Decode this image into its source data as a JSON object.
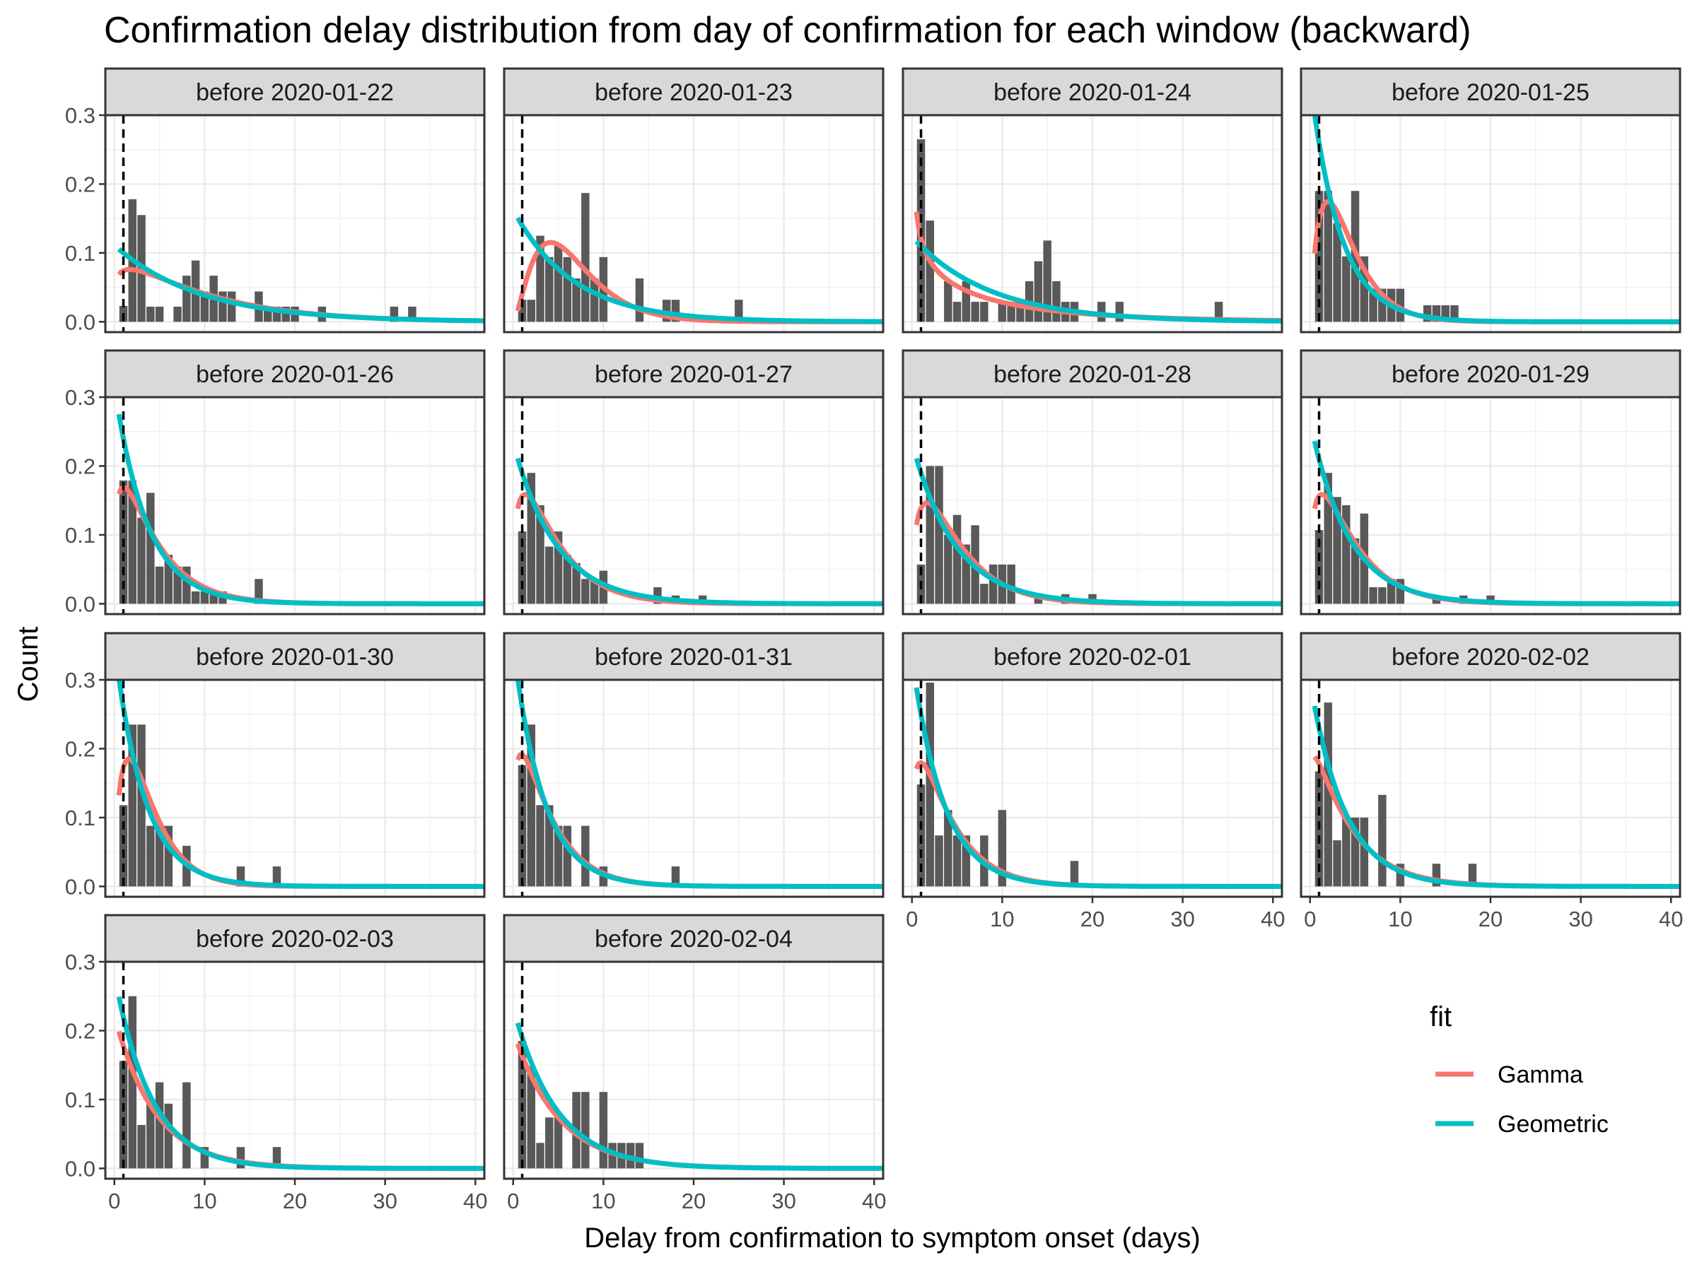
{
  "chart_data": {
    "type": "bar",
    "title": "Confirmation delay distribution from day of confirmation for each window (backward)",
    "xlabel": "Delay from confirmation to symptom onset (days)",
    "ylabel": "Count",
    "xlim": [
      -1,
      41
    ],
    "ylim": [
      -0.015,
      0.3
    ],
    "x_ticks": [
      0,
      10,
      20,
      30,
      40
    ],
    "y_ticks": [
      0.0,
      0.1,
      0.2,
      0.3
    ],
    "y_tick_labels": [
      "0.0",
      "0.1",
      "0.2",
      "0.3"
    ],
    "vline_x": 1,
    "grid": true,
    "legend": {
      "title": "fit",
      "position": "right",
      "entries": [
        {
          "name": "Gamma",
          "color": "#F8766D"
        },
        {
          "name": "Geometric",
          "color": "#00BFC4"
        }
      ]
    },
    "bar_color": "#595959",
    "panels": [
      {
        "label": "before 2020-01-22",
        "bars": [
          [
            1,
            0.023
          ],
          [
            2,
            0.178
          ],
          [
            3,
            0.155
          ],
          [
            4,
            0.022
          ],
          [
            5,
            0.022
          ],
          [
            7,
            0.022
          ],
          [
            8,
            0.067
          ],
          [
            9,
            0.089
          ],
          [
            10,
            0.044
          ],
          [
            11,
            0.067
          ],
          [
            12,
            0.044
          ],
          [
            13,
            0.044
          ],
          [
            16,
            0.044
          ],
          [
            17,
            0.022
          ],
          [
            18,
            0.022
          ],
          [
            19,
            0.022
          ],
          [
            20,
            0.022
          ],
          [
            23,
            0.022
          ],
          [
            31,
            0.022
          ],
          [
            33,
            0.022
          ]
        ],
        "gamma": {
          "shape": 1.2,
          "scale": 8.5
        },
        "geometric_p": 0.1
      },
      {
        "label": "before 2020-01-23",
        "bars": [
          [
            1,
            0.032
          ],
          [
            2,
            0.032
          ],
          [
            3,
            0.125
          ],
          [
            4,
            0.094
          ],
          [
            5,
            0.11
          ],
          [
            6,
            0.094
          ],
          [
            7,
            0.063
          ],
          [
            8,
            0.187
          ],
          [
            9,
            0.063
          ],
          [
            10,
            0.094
          ],
          [
            14,
            0.063
          ],
          [
            17,
            0.032
          ],
          [
            18,
            0.032
          ],
          [
            25,
            0.032
          ]
        ],
        "gamma": {
          "shape": 2.6,
          "scale": 2.6
        },
        "geometric_p": 0.14
      },
      {
        "label": "before 2020-01-24",
        "bars": [
          [
            1,
            0.265
          ],
          [
            2,
            0.147
          ],
          [
            4,
            0.059
          ],
          [
            5,
            0.029
          ],
          [
            6,
            0.059
          ],
          [
            7,
            0.029
          ],
          [
            8,
            0.029
          ],
          [
            10,
            0.029
          ],
          [
            11,
            0.029
          ],
          [
            12,
            0.029
          ],
          [
            13,
            0.059
          ],
          [
            14,
            0.088
          ],
          [
            15,
            0.118
          ],
          [
            16,
            0.059
          ],
          [
            17,
            0.029
          ],
          [
            18,
            0.029
          ],
          [
            21,
            0.029
          ],
          [
            23,
            0.029
          ],
          [
            34,
            0.029
          ]
        ],
        "gamma": {
          "shape": 0.65,
          "scale": 14
        },
        "geometric_p": 0.11
      },
      {
        "label": "before 2020-01-25",
        "bars": [
          [
            1,
            0.19
          ],
          [
            2,
            0.19
          ],
          [
            3,
            0.143
          ],
          [
            4,
            0.095
          ],
          [
            5,
            0.19
          ],
          [
            6,
            0.095
          ],
          [
            7,
            0.048
          ],
          [
            8,
            0.048
          ],
          [
            9,
            0.048
          ],
          [
            10,
            0.048
          ],
          [
            13,
            0.024
          ],
          [
            14,
            0.024
          ],
          [
            15,
            0.024
          ],
          [
            16,
            0.024
          ]
        ],
        "gamma": {
          "shape": 1.9,
          "scale": 2.2
        },
        "geometric_p": 0.26
      },
      {
        "label": "before 2020-01-26",
        "bars": [
          [
            1,
            0.179
          ],
          [
            2,
            0.179
          ],
          [
            3,
            0.125
          ],
          [
            4,
            0.161
          ],
          [
            5,
            0.054
          ],
          [
            6,
            0.071
          ],
          [
            7,
            0.054
          ],
          [
            8,
            0.054
          ],
          [
            9,
            0.018
          ],
          [
            10,
            0.018
          ],
          [
            11,
            0.018
          ],
          [
            12,
            0.018
          ],
          [
            16,
            0.036
          ]
        ],
        "gamma": {
          "shape": 1.3,
          "scale": 3.4
        },
        "geometric_p": 0.24
      },
      {
        "label": "before 2020-01-27",
        "bars": [
          [
            1,
            0.105
          ],
          [
            2,
            0.19
          ],
          [
            3,
            0.143
          ],
          [
            4,
            0.083
          ],
          [
            5,
            0.105
          ],
          [
            6,
            0.071
          ],
          [
            7,
            0.059
          ],
          [
            8,
            0.036
          ],
          [
            9,
            0.036
          ],
          [
            10,
            0.048
          ],
          [
            16,
            0.024
          ],
          [
            18,
            0.012
          ],
          [
            21,
            0.012
          ]
        ],
        "gamma": {
          "shape": 1.4,
          "scale": 3.3
        },
        "geometric_p": 0.19
      },
      {
        "label": "before 2020-01-28",
        "bars": [
          [
            1,
            0.057
          ],
          [
            2,
            0.2
          ],
          [
            3,
            0.2
          ],
          [
            4,
            0.1
          ],
          [
            5,
            0.129
          ],
          [
            6,
            0.086
          ],
          [
            7,
            0.114
          ],
          [
            8,
            0.029
          ],
          [
            9,
            0.057
          ],
          [
            10,
            0.057
          ],
          [
            11,
            0.057
          ],
          [
            14,
            0.014
          ],
          [
            17,
            0.014
          ],
          [
            20,
            0.014
          ]
        ],
        "gamma": {
          "shape": 1.5,
          "scale": 3.3
        },
        "geometric_p": 0.19
      },
      {
        "label": "before 2020-01-29",
        "bars": [
          [
            1,
            0.107
          ],
          [
            2,
            0.19
          ],
          [
            3,
            0.155
          ],
          [
            4,
            0.143
          ],
          [
            5,
            0.095
          ],
          [
            6,
            0.131
          ],
          [
            7,
            0.024
          ],
          [
            8,
            0.024
          ],
          [
            9,
            0.036
          ],
          [
            10,
            0.036
          ],
          [
            14,
            0.012
          ],
          [
            17,
            0.012
          ],
          [
            20,
            0.012
          ]
        ],
        "gamma": {
          "shape": 1.4,
          "scale": 3.3
        },
        "geometric_p": 0.21
      },
      {
        "label": "before 2020-01-30",
        "bars": [
          [
            1,
            0.118
          ],
          [
            2,
            0.235
          ],
          [
            3,
            0.235
          ],
          [
            4,
            0.088
          ],
          [
            5,
            0.088
          ],
          [
            6,
            0.088
          ],
          [
            8,
            0.059
          ],
          [
            14,
            0.029
          ],
          [
            18,
            0.029
          ]
        ],
        "gamma": {
          "shape": 1.7,
          "scale": 2.3
        },
        "geometric_p": 0.26
      },
      {
        "label": "before 2020-01-31",
        "bars": [
          [
            1,
            0.176
          ],
          [
            2,
            0.235
          ],
          [
            3,
            0.118
          ],
          [
            4,
            0.118
          ],
          [
            5,
            0.088
          ],
          [
            6,
            0.088
          ],
          [
            8,
            0.088
          ],
          [
            10,
            0.029
          ],
          [
            18,
            0.029
          ]
        ],
        "gamma": {
          "shape": 1.3,
          "scale": 3.0
        },
        "geometric_p": 0.26
      },
      {
        "label": "before 2020-02-01",
        "bars": [
          [
            1,
            0.148
          ],
          [
            2,
            0.296
          ],
          [
            3,
            0.074
          ],
          [
            4,
            0.111
          ],
          [
            5,
            0.074
          ],
          [
            6,
            0.074
          ],
          [
            8,
            0.074
          ],
          [
            10,
            0.111
          ],
          [
            18,
            0.037
          ]
        ],
        "gamma": {
          "shape": 1.3,
          "scale": 3.2
        },
        "geometric_p": 0.25
      },
      {
        "label": "before 2020-02-02",
        "bars": [
          [
            1,
            0.167
          ],
          [
            2,
            0.267
          ],
          [
            3,
            0.067
          ],
          [
            4,
            0.1
          ],
          [
            5,
            0.1
          ],
          [
            6,
            0.1
          ],
          [
            8,
            0.133
          ],
          [
            10,
            0.033
          ],
          [
            14,
            0.033
          ],
          [
            18,
            0.033
          ]
        ],
        "gamma": {
          "shape": 1.1,
          "scale": 4.0
        },
        "geometric_p": 0.23
      },
      {
        "label": "before 2020-02-03",
        "bars": [
          [
            1,
            0.156
          ],
          [
            2,
            0.25
          ],
          [
            3,
            0.063
          ],
          [
            4,
            0.094
          ],
          [
            5,
            0.125
          ],
          [
            6,
            0.094
          ],
          [
            8,
            0.125
          ],
          [
            10,
            0.031
          ],
          [
            14,
            0.031
          ],
          [
            18,
            0.031
          ]
        ],
        "gamma": {
          "shape": 1.0,
          "scale": 4.5
        },
        "geometric_p": 0.22
      },
      {
        "label": "before 2020-02-04",
        "bars": [
          [
            1,
            0.185
          ],
          [
            2,
            0.148
          ],
          [
            3,
            0.037
          ],
          [
            4,
            0.074
          ],
          [
            5,
            0.074
          ],
          [
            7,
            0.111
          ],
          [
            8,
            0.111
          ],
          [
            10,
            0.111
          ],
          [
            11,
            0.037
          ],
          [
            12,
            0.037
          ],
          [
            13,
            0.037
          ],
          [
            14,
            0.037
          ]
        ],
        "gamma": {
          "shape": 1.0,
          "scale": 5.0
        },
        "geometric_p": 0.19
      }
    ]
  }
}
